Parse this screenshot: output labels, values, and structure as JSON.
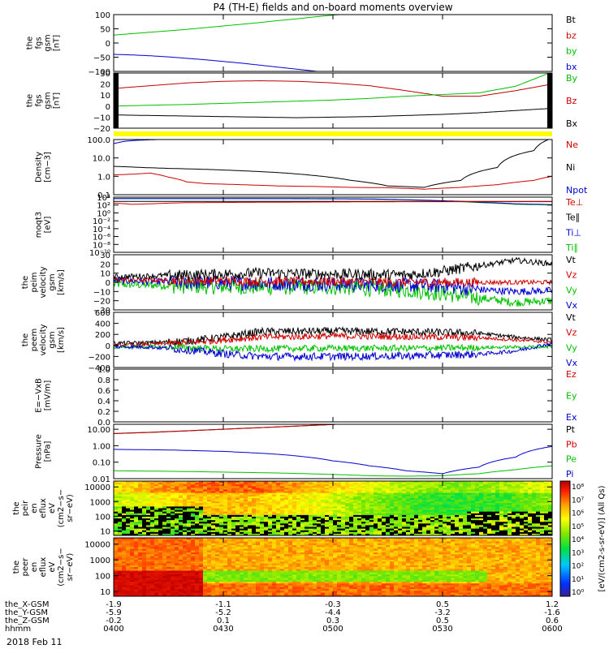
{
  "title": "P4 (TH-E) fields and on-board moments overview",
  "date_label": "2018 Feb 11",
  "colorbar": {
    "label": "[eV/(cm2-s-sr-eV)] (All Qs)",
    "ticks": [
      "10⁸",
      "10⁷",
      "10⁶",
      "10⁵",
      "10⁴",
      "10³",
      "10²",
      "10¹",
      "10⁰"
    ]
  },
  "orbit": {
    "rows": [
      {
        "label": "the_X-GSM",
        "values": [
          "-1.9",
          "-1.1",
          "-0.3",
          "0.5",
          "1.2"
        ]
      },
      {
        "label": "the_Y-GSM",
        "values": [
          "-5.9",
          "-5.2",
          "-4.4",
          "-3.2",
          "-1.6"
        ]
      },
      {
        "label": "the_Z-GSM",
        "values": [
          "-0.2",
          "0.1",
          "0.3",
          "0.5",
          "0.6"
        ]
      },
      {
        "label": "hhmm",
        "values": [
          "0400",
          "0430",
          "0500",
          "0530",
          "0600"
        ]
      }
    ]
  },
  "chart_data": [
    {
      "type": "line",
      "ylabel": [
        "the",
        "fgs",
        "gsm",
        "[nT]"
      ],
      "ylim": [
        -100,
        100
      ],
      "yticks": [
        "100",
        "50",
        "0",
        "−50",
        "−100"
      ],
      "legend": [
        {
          "label": "Bt",
          "color": "#000000"
        },
        {
          "label": "bz",
          "color": "#d00000"
        },
        {
          "label": "by",
          "color": "#00c000"
        },
        {
          "label": "bx",
          "color": "#0000d0"
        }
      ],
      "series": [
        {
          "name": "by",
          "color": "#00c000",
          "x": [
            0,
            5,
            10,
            15,
            20,
            25,
            30,
            35,
            40,
            45,
            50,
            55,
            60,
            65,
            69
          ],
          "y": [
            28,
            33,
            38,
            43,
            48,
            54,
            60,
            66,
            72,
            79,
            85,
            92,
            98,
            104,
            108
          ]
        },
        {
          "name": "bx",
          "color": "#0000d0",
          "x": [
            0,
            5,
            10,
            15,
            20,
            25,
            30,
            35,
            40,
            45,
            50,
            55,
            60,
            62
          ],
          "y": [
            -40,
            -42,
            -45,
            -49,
            -54,
            -59,
            -65,
            -71,
            -78,
            -85,
            -92,
            -99,
            -107,
            -110
          ]
        }
      ]
    },
    {
      "type": "line",
      "ylabel": [
        "the",
        "fgs",
        "gsm",
        "[nT]"
      ],
      "ylim": [
        -20,
        30
      ],
      "yticks": [
        "30",
        "20",
        "10",
        "0",
        "−10",
        "−20"
      ],
      "legend": [
        {
          "label": "By",
          "color": "#00c000"
        },
        {
          "label": "Bz",
          "color": "#d00000"
        },
        {
          "label": "Bx",
          "color": "#000000"
        }
      ],
      "series": [
        {
          "name": "Bz",
          "color": "#c00000",
          "x": [
            0,
            10,
            20,
            30,
            40,
            50,
            60,
            70,
            80,
            90,
            100,
            110,
            120
          ],
          "y": [
            16,
            18.5,
            21,
            22.5,
            23,
            22.5,
            21,
            18.5,
            14,
            9,
            9,
            14,
            20
          ]
        },
        {
          "name": "By",
          "color": "#00c000",
          "x": [
            0,
            10,
            20,
            30,
            40,
            50,
            60,
            70,
            80,
            90,
            100,
            110,
            120
          ],
          "y": [
            0,
            0.8,
            1.5,
            2.5,
            3.5,
            4.5,
            5.5,
            7,
            9,
            10.5,
            12,
            18,
            31
          ]
        },
        {
          "name": "Bx",
          "color": "#000000",
          "x": [
            0,
            10,
            20,
            30,
            40,
            50,
            60,
            70,
            80,
            90,
            100,
            110,
            120
          ],
          "y": [
            -8,
            -8.5,
            -9,
            -9.5,
            -10,
            -10.5,
            -10,
            -9.5,
            -8.5,
            -7.5,
            -6,
            -4,
            -2
          ]
        }
      ]
    },
    {
      "type": "line",
      "scale": "log",
      "ylabel": [
        "Density",
        "[cm−3]"
      ],
      "ylim": [
        0.1,
        100
      ],
      "yticks": [
        "100.0",
        "10.0",
        "1.0",
        "0.1"
      ],
      "legend": [
        {
          "label": "Ne",
          "color": "#d00000"
        },
        {
          "label": "Ni",
          "color": "#000000"
        },
        {
          "label": "Npot",
          "color": "#0000d0"
        }
      ],
      "series": [
        {
          "name": "Ni",
          "color": "#000000",
          "x": [
            0,
            8,
            15,
            25,
            35,
            45,
            55,
            65,
            75,
            85,
            95,
            105,
            115,
            120
          ],
          "y": [
            3.5,
            3,
            2.7,
            2.4,
            2,
            1.6,
            1.1,
            0.6,
            0.3,
            0.25,
            0.6,
            3,
            25,
            120
          ]
        },
        {
          "name": "Ne",
          "color": "#d00000",
          "x": [
            0,
            5,
            10,
            15,
            20,
            25,
            35,
            45,
            55,
            65,
            75,
            85,
            95,
            105,
            115,
            120
          ],
          "y": [
            1.2,
            1.3,
            1.5,
            0.9,
            0.5,
            0.4,
            0.35,
            0.3,
            0.28,
            0.25,
            0.24,
            0.2,
            0.25,
            0.35,
            0.6,
            1.0
          ]
        },
        {
          "name": "Npot",
          "color": "#0000d0",
          "x": [
            0,
            3,
            6,
            9,
            12,
            14
          ],
          "y": [
            60,
            80,
            90,
            95,
            100,
            200
          ]
        }
      ]
    },
    {
      "type": "line",
      "scale": "log",
      "ylabel": [
        "moqt3",
        "[eV]"
      ],
      "ylim": [
        1e-10,
        10000
      ],
      "yticks": [
        "10⁴",
        "10²",
        "10⁰",
        "10⁻²",
        "10⁻⁴",
        "10⁻⁶",
        "10⁻⁸",
        "10⁻¹⁰"
      ],
      "legend": [
        {
          "label": "Te⊥",
          "color": "#d00000"
        },
        {
          "label": "Te∥",
          "color": "#000000"
        },
        {
          "label": "Ti⊥",
          "color": "#0000d0"
        },
        {
          "label": "Ti∥",
          "color": "#00c000"
        }
      ],
      "series": [
        {
          "name": "Ti∥",
          "color": "#00c000",
          "x": [
            0,
            20,
            40,
            60,
            70,
            80,
            90,
            100,
            110,
            120
          ],
          "y": [
            4000,
            4000,
            4000,
            3500,
            3000,
            2000,
            1000,
            400,
            150,
            100
          ]
        },
        {
          "name": "Ti⊥",
          "color": "#0000d0",
          "x": [
            0,
            20,
            40,
            60,
            70,
            80,
            90,
            100,
            110,
            120
          ],
          "y": [
            4500,
            4500,
            4500,
            4000,
            3500,
            2200,
            1200,
            500,
            200,
            120
          ]
        },
        {
          "name": "Te∥",
          "color": "#000000",
          "x": [
            0,
            20,
            40,
            60,
            80,
            100,
            120
          ],
          "y": [
            800,
            800,
            800,
            800,
            800,
            800,
            800
          ]
        },
        {
          "name": "Te⊥",
          "color": "#d00000",
          "x": [
            0,
            5,
            10,
            20,
            40,
            60,
            80,
            100,
            120
          ],
          "y": [
            300,
            150,
            200,
            400,
            500,
            600,
            700,
            700,
            700
          ]
        }
      ]
    },
    {
      "type": "line",
      "ylabel": [
        "the",
        "peim",
        "velocity",
        "gsm",
        "[km/s]"
      ],
      "ylim": [
        -30,
        30
      ],
      "yticks": [
        "30",
        "20",
        "10",
        "0",
        "−10",
        "−20",
        "−30"
      ],
      "legend": [
        {
          "label": "Vt",
          "color": "#000000"
        },
        {
          "label": "Vz",
          "color": "#d00000"
        },
        {
          "label": "Vy",
          "color": "#00c000"
        },
        {
          "label": "Vx",
          "color": "#0000d0"
        }
      ],
      "series": [
        {
          "name": "Vy",
          "color": "#00c000",
          "noise": 9,
          "x": [
            0,
            20,
            40,
            60,
            80,
            90,
            100,
            110,
            120
          ],
          "y": [
            -2,
            -4,
            -5,
            -5,
            -8,
            -12,
            -17,
            -22,
            -20
          ]
        },
        {
          "name": "Vx",
          "color": "#0000d0",
          "noise": 8,
          "x": [
            0,
            20,
            40,
            60,
            80,
            90,
            100,
            110,
            120
          ],
          "y": [
            2,
            0,
            -1,
            -2,
            -3,
            -4,
            -8,
            -10,
            -9
          ]
        },
        {
          "name": "Vz",
          "color": "#d00000",
          "noise": 5,
          "x": [
            0,
            20,
            40,
            60,
            80,
            90,
            100,
            110,
            120
          ],
          "y": [
            3,
            2,
            1,
            1,
            0,
            0,
            0,
            0,
            0
          ]
        },
        {
          "name": "Vt",
          "color": "#000000",
          "noise": 6,
          "x": [
            0,
            20,
            40,
            60,
            80,
            90,
            100,
            110,
            120
          ],
          "y": [
            6,
            8,
            10,
            9,
            8,
            12,
            18,
            24,
            20
          ]
        }
      ]
    },
    {
      "type": "line",
      "ylabel": [
        "the",
        "peem",
        "velocity",
        "gsm",
        "[km/s]"
      ],
      "ylim": [
        -400,
        600
      ],
      "yticks": [
        "600",
        "400",
        "200",
        "0",
        "−200",
        "−400"
      ],
      "legend": [
        {
          "label": "Vt",
          "color": "#000000"
        },
        {
          "label": "Vz",
          "color": "#d00000"
        },
        {
          "label": "Vy",
          "color": "#00c000"
        },
        {
          "label": "Vx",
          "color": "#0000d0"
        }
      ],
      "series": [
        {
          "name": "Vt",
          "color": "#000000",
          "noise": 70,
          "x": [
            0,
            10,
            20,
            30,
            40,
            60,
            80,
            100,
            110,
            120
          ],
          "y": [
            40,
            50,
            80,
            150,
            250,
            260,
            250,
            220,
            150,
            100
          ]
        },
        {
          "name": "Vz",
          "color": "#d00000",
          "noise": 60,
          "x": [
            0,
            10,
            20,
            30,
            40,
            60,
            80,
            100,
            110,
            120
          ],
          "y": [
            0,
            20,
            50,
            100,
            150,
            170,
            160,
            140,
            100,
            60
          ]
        },
        {
          "name": "Vy",
          "color": "#00c000",
          "noise": 60,
          "x": [
            0,
            10,
            20,
            30,
            40,
            60,
            80,
            100,
            110,
            120
          ],
          "y": [
            -30,
            -20,
            -40,
            -60,
            -60,
            -50,
            -50,
            -40,
            -30,
            -20
          ]
        },
        {
          "name": "Vx",
          "color": "#0000d0",
          "noise": 70,
          "x": [
            0,
            10,
            20,
            30,
            40,
            60,
            80,
            100,
            110,
            120
          ],
          "y": [
            -20,
            -30,
            -80,
            -150,
            -200,
            -200,
            -190,
            -160,
            -100,
            40
          ]
        }
      ]
    },
    {
      "type": "line",
      "ylabel": [
        "E=−VxB",
        "[mV/m]"
      ],
      "ylim": [
        0,
        1
      ],
      "yticks": [
        "1.0",
        "0.8",
        "0.6",
        "0.4",
        "0.2",
        "0.0"
      ],
      "legend": [
        {
          "label": "Ez",
          "color": "#d00000"
        },
        {
          "label": "Ey",
          "color": "#00c000"
        },
        {
          "label": "Ex",
          "color": "#0000d0"
        }
      ],
      "series": []
    },
    {
      "type": "line",
      "scale": "log",
      "ylabel": [
        "Pressure",
        "[nPa]"
      ],
      "ylim": [
        0.01,
        20
      ],
      "yticks": [
        "10.00",
        "1.00",
        "0.10",
        "0.01"
      ],
      "legend": [
        {
          "label": "Pt",
          "color": "#000000"
        },
        {
          "label": "Pb",
          "color": "#d00000"
        },
        {
          "label": "Pe",
          "color": "#00c000"
        },
        {
          "label": "Pi",
          "color": "#0000d0"
        }
      ],
      "series": [
        {
          "name": "Pt",
          "color": "#000000",
          "x": [
            0,
            10,
            20,
            30,
            40,
            50,
            60,
            62
          ],
          "y": [
            5.5,
            6.5,
            8,
            10,
            12.5,
            15.5,
            19.5,
            21
          ]
        },
        {
          "name": "Pb",
          "color": "#d00000",
          "x": [
            0,
            10,
            20,
            30,
            40,
            50,
            60,
            62
          ],
          "y": [
            5.4,
            6.4,
            7.9,
            9.9,
            12.4,
            15.4,
            19.4,
            20.8
          ]
        },
        {
          "name": "Pi",
          "color": "#0000d0",
          "x": [
            0,
            15,
            30,
            45,
            60,
            70,
            80,
            90,
            100,
            110,
            120
          ],
          "y": [
            0.6,
            0.55,
            0.45,
            0.3,
            0.12,
            0.06,
            0.03,
            0.02,
            0.05,
            0.2,
            0.9
          ]
        },
        {
          "name": "Pe",
          "color": "#00c000",
          "x": [
            0,
            15,
            30,
            45,
            60,
            70,
            80,
            90,
            100,
            110,
            120
          ],
          "y": [
            0.03,
            0.028,
            0.025,
            0.022,
            0.018,
            0.015,
            0.014,
            0.015,
            0.02,
            0.035,
            0.06
          ]
        }
      ]
    },
    {
      "type": "heatmap",
      "ylabel": [
        "the",
        "peir",
        "en",
        "eflux",
        "eV",
        "(cm2−s−",
        "sr−eV)"
      ],
      "ylim": [
        5,
        25000
      ],
      "yticks": [
        "10000",
        "1000",
        "100",
        "10"
      ]
    },
    {
      "type": "heatmap",
      "ylabel": [
        "the",
        "peer",
        "en",
        "eflux",
        "eV",
        "(cm2−s−",
        "sr−eV)"
      ],
      "ylim": [
        5,
        25000
      ],
      "yticks": [
        "10000",
        "1000",
        "100",
        "10"
      ]
    }
  ]
}
